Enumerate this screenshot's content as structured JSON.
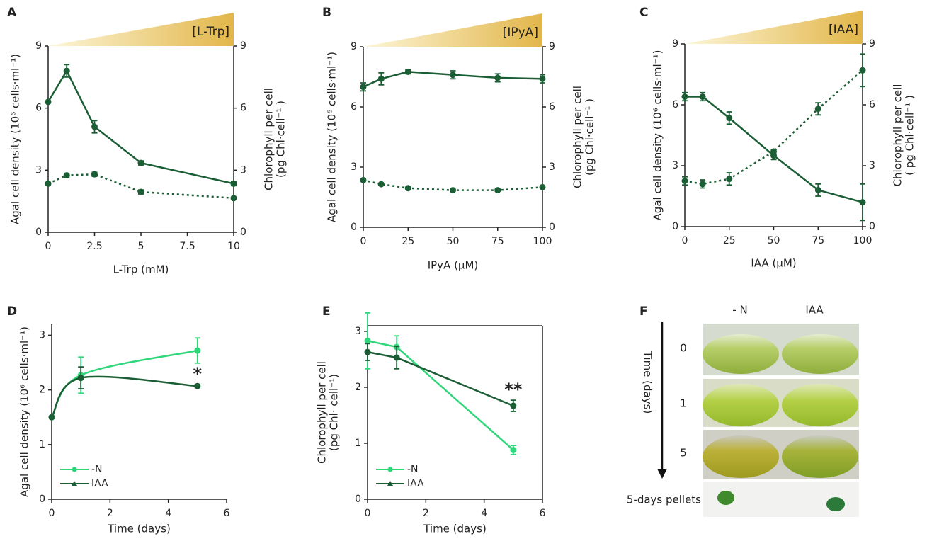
{
  "chart_data": [
    {
      "type": "line",
      "panel": "A",
      "triangle_label": "[L-Trp]",
      "x": [
        0,
        1,
        2.5,
        5,
        10
      ],
      "xlim": [
        0,
        10
      ],
      "xticks": [
        0,
        2.5,
        5,
        7.5,
        10
      ],
      "ylim": [
        0,
        9
      ],
      "yticks": [
        0,
        3,
        6,
        9
      ],
      "y2lim": [
        0,
        9
      ],
      "y2ticks": [
        0,
        3,
        6,
        9
      ],
      "xlabel": "L-Trp (mM)",
      "ylabel": "Agal cell density (10⁶ cells·ml⁻¹)",
      "y2label": [
        "Chlorophyll per cell",
        "(pg Chl·cell⁻¹ )"
      ],
      "series": [
        {
          "color": "#1b5e35",
          "values": [
            6.3,
            7.8,
            5.1,
            3.35,
            2.35
          ],
          "errors": [
            0.05,
            0.3,
            0.3,
            0.1,
            0.1
          ]
        },
        {
          "color": "#1b5e35",
          "axis": "y2",
          "dashed": true,
          "values": [
            2.35,
            2.75,
            2.8,
            1.95,
            1.65
          ],
          "errors": [
            0.05,
            0.1,
            0.1,
            0.1,
            0.05
          ]
        }
      ]
    },
    {
      "type": "line",
      "panel": "B",
      "triangle_label": "[IPyA]",
      "x": [
        0,
        10,
        25,
        50,
        75,
        100
      ],
      "xlim": [
        0,
        100
      ],
      "xticks": [
        0,
        25,
        50,
        75,
        100
      ],
      "ylim": [
        0,
        9
      ],
      "yticks": [
        0,
        3,
        6,
        9
      ],
      "y2lim": [
        0,
        9
      ],
      "y2ticks": [
        0,
        3,
        6,
        9
      ],
      "xlabel": "IPyA (µM)",
      "ylabel": "Agal cell density (10⁶ cells·ml⁻¹)",
      "y2label": [
        "Chlorophyll per cell",
        "(pg Chl·cell⁻¹ )"
      ],
      "series": [
        {
          "color": "#1b5e35",
          "values": [
            7.0,
            7.4,
            7.75,
            7.6,
            7.45,
            7.4
          ],
          "errors": [
            0.2,
            0.3,
            0.1,
            0.2,
            0.2,
            0.2
          ]
        },
        {
          "color": "#1b5e35",
          "axis": "y2",
          "dashed": true,
          "values": [
            2.35,
            2.15,
            1.95,
            1.85,
            1.85,
            2.0
          ],
          "errors": [
            0.05,
            0.05,
            0.05,
            0.05,
            0.05,
            0.05
          ]
        }
      ]
    },
    {
      "type": "line",
      "panel": "C",
      "triangle_label": "[IAA]",
      "x": [
        0,
        10,
        25,
        50,
        75,
        100
      ],
      "xlim": [
        0,
        100
      ],
      "xticks": [
        0,
        25,
        50,
        75,
        100
      ],
      "ylim": [
        0,
        9
      ],
      "yticks": [
        0,
        3,
        6,
        9
      ],
      "y2lim": [
        0,
        9
      ],
      "y2ticks": [
        0,
        3,
        6,
        9
      ],
      "xlabel": "IAA (µM)",
      "ylabel": "Agal cell density (10⁶ cells·ml⁻¹)",
      "y2label": [
        "Chlorophyll per cell",
        "( pg Chl·cell⁻¹ )"
      ],
      "series": [
        {
          "color": "#1b5e35",
          "values": [
            6.4,
            6.4,
            5.35,
            3.5,
            1.8,
            1.2
          ],
          "errors": [
            0.2,
            0.2,
            0.3,
            0.2,
            0.3,
            0.9
          ]
        },
        {
          "color": "#1b5e35",
          "axis": "y2",
          "dashed": true,
          "values": [
            2.25,
            2.1,
            2.35,
            3.7,
            5.8,
            7.7
          ],
          "errors": [
            0.2,
            0.2,
            0.3,
            0.1,
            0.3,
            0.8
          ]
        }
      ]
    },
    {
      "type": "line",
      "panel": "D",
      "x": [
        0,
        1,
        5
      ],
      "xlim": [
        0,
        6
      ],
      "xticks": [
        0,
        2,
        4,
        6
      ],
      "ylim": [
        0,
        3.2
      ],
      "yticks": [
        0,
        1,
        2,
        3
      ],
      "xlabel": "Time (days)",
      "ylabel": "Agal cell density (10⁶ cells·ml⁻¹)",
      "smooth": true,
      "legend": "lower left",
      "series": [
        {
          "name": "-N",
          "color": "#2fd67a",
          "marker": "circle",
          "values": [
            1.5,
            2.27,
            2.72
          ],
          "errors": [
            0.02,
            0.33,
            0.23
          ]
        },
        {
          "name": "IAA",
          "color": "#1b5e35",
          "marker": "triangle",
          "values": [
            1.5,
            2.22,
            2.07
          ],
          "errors": [
            0.02,
            0.2,
            0.03
          ]
        }
      ],
      "annotations": [
        "*"
      ]
    },
    {
      "type": "line",
      "panel": "E",
      "x": [
        0,
        1,
        5
      ],
      "xlim": [
        0,
        6
      ],
      "xticks": [
        0,
        2,
        4,
        6
      ],
      "ylim": [
        0,
        3.1
      ],
      "yticks": [
        0,
        1,
        2,
        3
      ],
      "xlabel": "Time (days)",
      "ylabel": [
        "Chlorophyll per cell",
        "(pg Chl· cell⁻¹)"
      ],
      "box": true,
      "legend": "lower left",
      "series": [
        {
          "name": "-N",
          "color": "#2fd67a",
          "marker": "circle",
          "values": [
            2.83,
            2.72,
            0.88
          ],
          "errors": [
            0.5,
            0.2,
            0.08
          ]
        },
        {
          "name": "IAA",
          "color": "#1b5e35",
          "marker": "triangle",
          "values": [
            2.63,
            2.53,
            1.67
          ],
          "errors": [
            0.15,
            0.2,
            0.1
          ]
        }
      ],
      "annotations": [
        "**"
      ]
    }
  ],
  "photo_panel": {
    "panel": "F",
    "columns": [
      "- N",
      "IAA"
    ],
    "axis_label": "Time (days)",
    "rows": [
      "0",
      "1",
      "5",
      "5-days pellets"
    ]
  }
}
